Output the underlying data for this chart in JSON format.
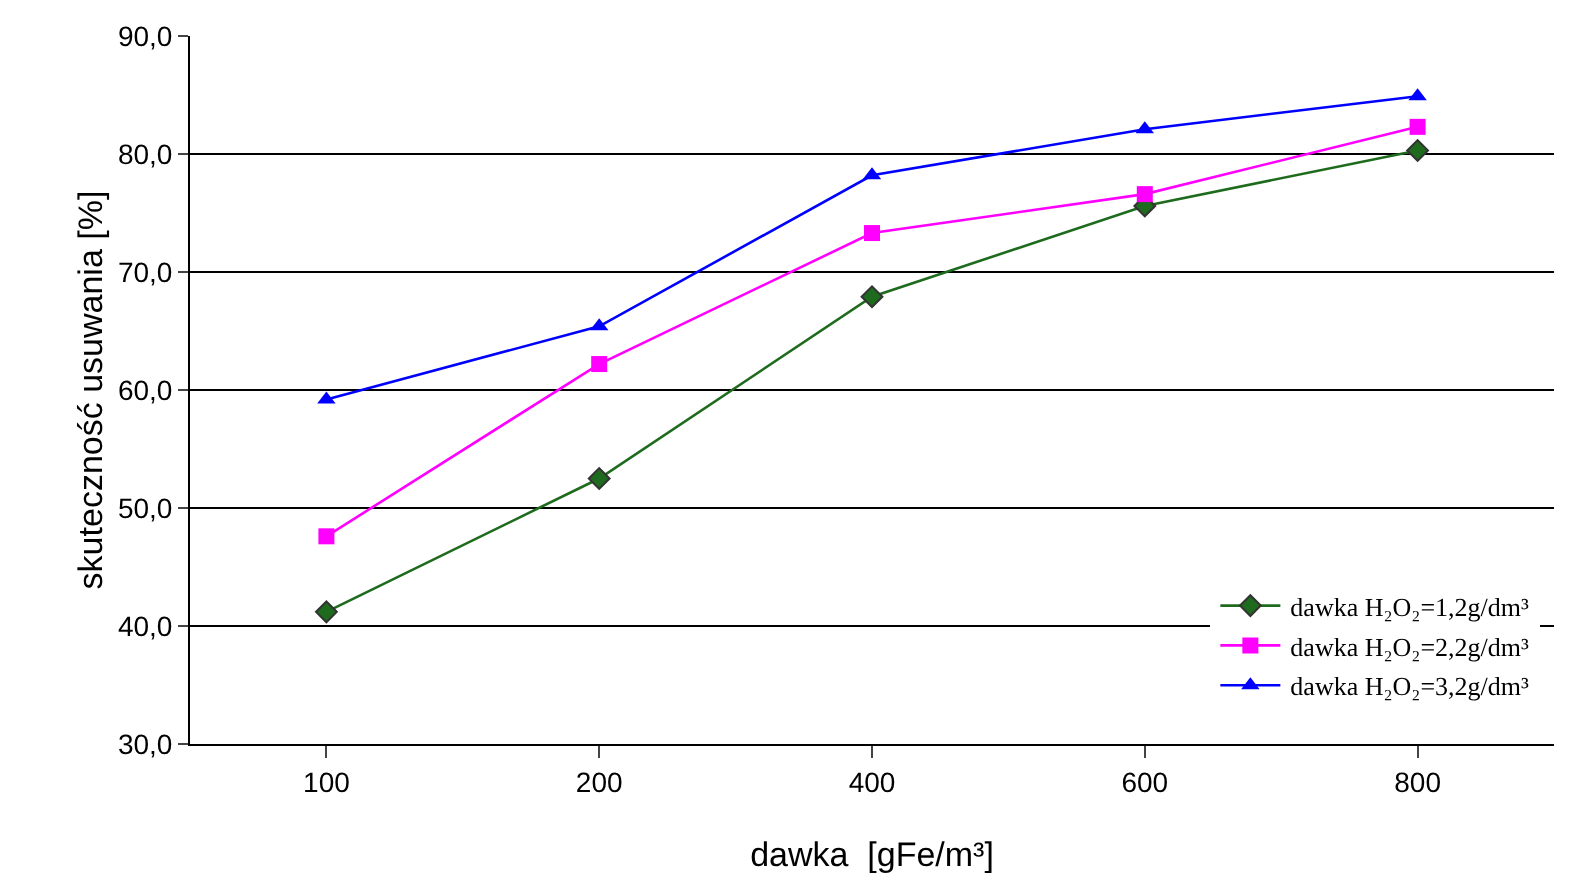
{
  "chart_data": {
    "type": "line",
    "xlabel": "dawka  [gFe/m³]",
    "ylabel": "skuteczność usuwania [%]",
    "categories": [
      "100",
      "200",
      "400",
      "600",
      "800"
    ],
    "series": [
      {
        "name": "dawka H₂O₂=1,2g/dm³",
        "color": "#1e6b1e",
        "marker": "diamond",
        "values": [
          41.2,
          52.5,
          67.9,
          75.6,
          80.3
        ]
      },
      {
        "name": "dawka H₂O₂=2,2g/dm³",
        "color": "#ff00ff",
        "marker": "square",
        "values": [
          47.6,
          62.2,
          73.3,
          76.6,
          82.3
        ]
      },
      {
        "name": "dawka H₂O₂=3,2g/dm³",
        "color": "#0000ff",
        "marker": "triangle",
        "values": [
          59.2,
          65.4,
          78.2,
          82.1,
          84.9
        ]
      }
    ],
    "ylim": [
      30,
      90
    ],
    "yticks": [
      {
        "value": 30,
        "label": "30,0"
      },
      {
        "value": 40,
        "label": "40,0"
      },
      {
        "value": 50,
        "label": "50,0"
      },
      {
        "value": 60,
        "label": "60,0"
      },
      {
        "value": 70,
        "label": "70,0"
      },
      {
        "value": 80,
        "label": "80,0"
      },
      {
        "value": 90,
        "label": "90,0"
      }
    ],
    "grid": "y",
    "legend": "bottom right"
  }
}
